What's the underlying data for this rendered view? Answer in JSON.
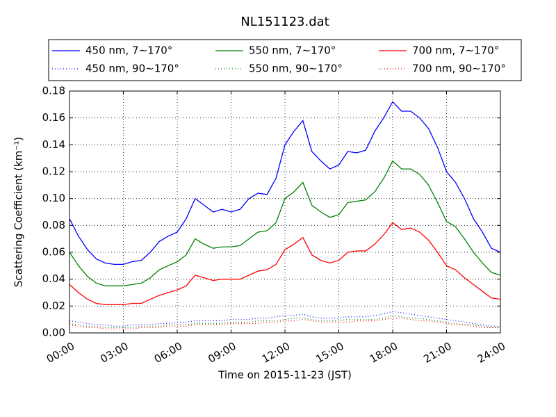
{
  "chart_data": {
    "type": "line",
    "title": "NL151123.dat",
    "xlabel": "Time on 2015-11-23 (JST)",
    "ylabel": "Scattering Coefficient (km⁻¹)",
    "x": [
      0,
      0.5,
      1,
      1.5,
      2,
      2.5,
      3,
      3.5,
      4,
      4.5,
      5,
      5.5,
      6,
      6.5,
      7,
      7.5,
      8,
      8.5,
      9,
      9.5,
      10,
      10.5,
      11,
      11.5,
      12,
      12.5,
      13,
      13.5,
      14,
      14.5,
      15,
      15.5,
      16,
      16.5,
      17,
      17.5,
      18,
      18.5,
      19,
      19.5,
      20,
      20.5,
      21,
      21.5,
      22,
      22.5,
      23,
      23.5,
      24
    ],
    "xlim": [
      0,
      24
    ],
    "xticks": [
      {
        "value": 0,
        "label": "00:00"
      },
      {
        "value": 3,
        "label": "03:00"
      },
      {
        "value": 6,
        "label": "06:00"
      },
      {
        "value": 9,
        "label": "09:00"
      },
      {
        "value": 12,
        "label": "12:00"
      },
      {
        "value": 15,
        "label": "15:00"
      },
      {
        "value": 18,
        "label": "18:00"
      },
      {
        "value": 21,
        "label": "21:00"
      },
      {
        "value": 24,
        "label": "24:00"
      }
    ],
    "ylim": [
      0,
      0.18
    ],
    "yticks": [
      {
        "value": 0,
        "label": "0.00"
      },
      0.02,
      0.04,
      0.06,
      0.08,
      {
        "value": 0.1,
        "label": "0.10"
      },
      0.12,
      0.14,
      0.16,
      0.18
    ],
    "grid": true,
    "legend": "top",
    "series": [
      {
        "name": "450 nm, 7∼170°",
        "color": "#0000ff",
        "style": "solid",
        "values": [
          0.085,
          0.072,
          0.062,
          0.055,
          0.052,
          0.051,
          0.051,
          0.053,
          0.054,
          0.06,
          0.068,
          0.072,
          0.075,
          0.085,
          0.1,
          0.095,
          0.09,
          0.092,
          0.09,
          0.092,
          0.1,
          0.104,
          0.103,
          0.115,
          0.14,
          0.15,
          0.158,
          0.135,
          0.128,
          0.122,
          0.125,
          0.135,
          0.134,
          0.136,
          0.15,
          0.16,
          0.172,
          0.165,
          0.165,
          0.16,
          0.152,
          0.138,
          0.12,
          0.112,
          0.1,
          0.085,
          0.075,
          0.063,
          0.06
        ]
      },
      {
        "name": "450 nm, 90∼170°",
        "color": "#0000ff",
        "style": "dotted",
        "values": [
          0.009,
          0.008,
          0.007,
          0.006,
          0.006,
          0.005,
          0.005,
          0.006,
          0.006,
          0.006,
          0.007,
          0.007,
          0.008,
          0.008,
          0.009,
          0.009,
          0.009,
          0.009,
          0.01,
          0.01,
          0.01,
          0.011,
          0.011,
          0.012,
          0.013,
          0.013,
          0.014,
          0.012,
          0.011,
          0.011,
          0.011,
          0.012,
          0.012,
          0.012,
          0.013,
          0.014,
          0.016,
          0.015,
          0.014,
          0.013,
          0.012,
          0.011,
          0.01,
          0.009,
          0.008,
          0.007,
          0.006,
          0.005,
          0.005
        ]
      },
      {
        "name": "550 nm, 7∼170°",
        "color": "#008000",
        "style": "solid",
        "values": [
          0.06,
          0.05,
          0.042,
          0.037,
          0.035,
          0.035,
          0.035,
          0.036,
          0.037,
          0.041,
          0.047,
          0.05,
          0.053,
          0.058,
          0.07,
          0.066,
          0.063,
          0.064,
          0.064,
          0.065,
          0.07,
          0.075,
          0.076,
          0.082,
          0.1,
          0.105,
          0.112,
          0.095,
          0.09,
          0.086,
          0.088,
          0.097,
          0.098,
          0.099,
          0.105,
          0.115,
          0.128,
          0.122,
          0.122,
          0.118,
          0.11,
          0.097,
          0.083,
          0.079,
          0.07,
          0.06,
          0.052,
          0.045,
          0.043
        ]
      },
      {
        "name": "550 nm, 90∼170°",
        "color": "#008000",
        "style": "dotted",
        "values": [
          0.007,
          0.006,
          0.005,
          0.005,
          0.004,
          0.004,
          0.004,
          0.004,
          0.005,
          0.005,
          0.005,
          0.006,
          0.006,
          0.006,
          0.007,
          0.007,
          0.007,
          0.007,
          0.008,
          0.008,
          0.008,
          0.009,
          0.009,
          0.009,
          0.01,
          0.011,
          0.011,
          0.01,
          0.009,
          0.009,
          0.009,
          0.01,
          0.01,
          0.01,
          0.01,
          0.011,
          0.013,
          0.012,
          0.011,
          0.011,
          0.01,
          0.009,
          0.008,
          0.007,
          0.006,
          0.006,
          0.005,
          0.004,
          0.004
        ]
      },
      {
        "name": "700 nm, 7∼170°",
        "color": "#ff0000",
        "style": "solid",
        "values": [
          0.036,
          0.03,
          0.025,
          0.022,
          0.021,
          0.021,
          0.021,
          0.022,
          0.022,
          0.025,
          0.028,
          0.03,
          0.032,
          0.035,
          0.043,
          0.041,
          0.039,
          0.04,
          0.04,
          0.04,
          0.043,
          0.046,
          0.047,
          0.051,
          0.062,
          0.066,
          0.071,
          0.058,
          0.054,
          0.052,
          0.054,
          0.06,
          0.061,
          0.061,
          0.066,
          0.073,
          0.082,
          0.077,
          0.078,
          0.075,
          0.069,
          0.06,
          0.05,
          0.047,
          0.041,
          0.036,
          0.031,
          0.026,
          0.025
        ]
      },
      {
        "name": "700 nm, 90∼170°",
        "color": "#ff0000",
        "style": "dotted",
        "values": [
          0.006,
          0.005,
          0.004,
          0.004,
          0.003,
          0.003,
          0.003,
          0.003,
          0.004,
          0.004,
          0.004,
          0.005,
          0.005,
          0.005,
          0.006,
          0.006,
          0.006,
          0.006,
          0.007,
          0.007,
          0.007,
          0.007,
          0.008,
          0.008,
          0.009,
          0.009,
          0.01,
          0.009,
          0.008,
          0.008,
          0.008,
          0.008,
          0.009,
          0.009,
          0.009,
          0.01,
          0.011,
          0.011,
          0.01,
          0.009,
          0.009,
          0.008,
          0.007,
          0.006,
          0.006,
          0.005,
          0.004,
          0.004,
          0.004
        ]
      }
    ]
  }
}
